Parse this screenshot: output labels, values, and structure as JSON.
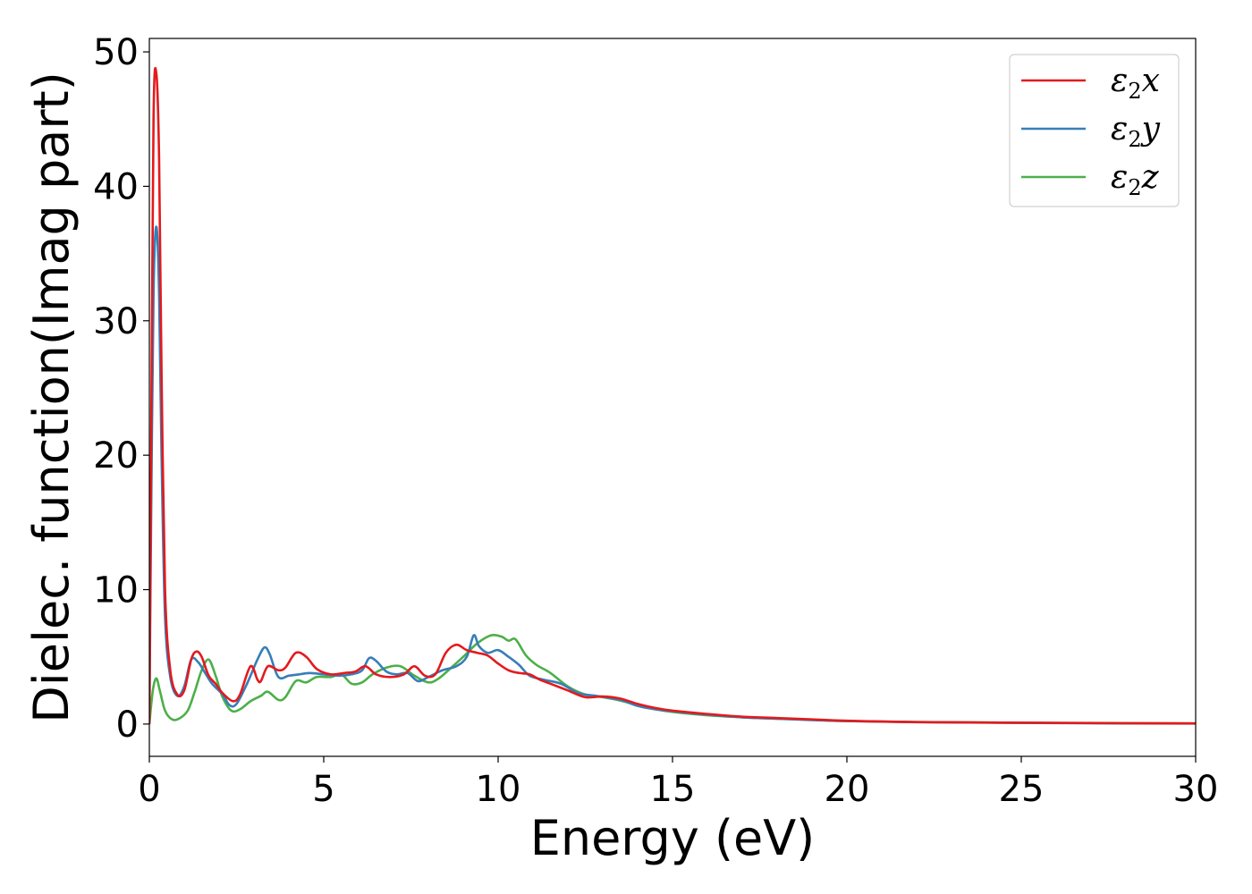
{
  "chart_data": {
    "type": "line",
    "xlabel": "Energy (eV)",
    "ylabel": "Dielec. function(Imag part)",
    "xlim": [
      0,
      30
    ],
    "ylim": [
      -2.4,
      51
    ],
    "xticks": [
      0,
      5,
      10,
      15,
      20,
      25,
      30
    ],
    "yticks": [
      0,
      10,
      20,
      30,
      40,
      50
    ],
    "grid": false,
    "legend_position": "top-right",
    "series": [
      {
        "name": "ε₂x",
        "legend_base": "ε",
        "legend_sub": "2",
        "legend_tail": "x",
        "color": "#e41a1c",
        "points": [
          [
            0,
            0
          ],
          [
            0.05,
            20
          ],
          [
            0.12,
            45
          ],
          [
            0.2,
            48.4
          ],
          [
            0.28,
            42
          ],
          [
            0.35,
            26
          ],
          [
            0.45,
            10
          ],
          [
            0.6,
            4
          ],
          [
            0.8,
            2.2
          ],
          [
            1.0,
            2.5
          ],
          [
            1.2,
            4.8
          ],
          [
            1.35,
            5.4
          ],
          [
            1.5,
            5
          ],
          [
            1.7,
            3.6
          ],
          [
            1.9,
            3
          ],
          [
            2.1,
            2.3
          ],
          [
            2.4,
            1.7
          ],
          [
            2.6,
            2.2
          ],
          [
            2.9,
            4.3
          ],
          [
            3.1,
            3.3
          ],
          [
            3.2,
            3.2
          ],
          [
            3.4,
            4.3
          ],
          [
            3.7,
            4
          ],
          [
            3.9,
            4.2
          ],
          [
            4.2,
            5.3
          ],
          [
            4.5,
            5
          ],
          [
            4.8,
            4.1
          ],
          [
            5.2,
            3.7
          ],
          [
            5.6,
            3.8
          ],
          [
            5.9,
            3.9
          ],
          [
            6.2,
            4.3
          ],
          [
            6.5,
            3.7
          ],
          [
            6.9,
            3.5
          ],
          [
            7.3,
            3.7
          ],
          [
            7.6,
            4.3
          ],
          [
            7.9,
            3.6
          ],
          [
            8.2,
            3.7
          ],
          [
            8.5,
            5.3
          ],
          [
            8.8,
            5.9
          ],
          [
            9.1,
            5.5
          ],
          [
            9.4,
            5.3
          ],
          [
            9.7,
            5.1
          ],
          [
            10.0,
            4.5
          ],
          [
            10.3,
            4.0
          ],
          [
            10.6,
            3.8
          ],
          [
            10.9,
            3.7
          ],
          [
            11.2,
            3.3
          ],
          [
            11.6,
            2.9
          ],
          [
            12.0,
            2.5
          ],
          [
            12.5,
            2.0
          ],
          [
            13.0,
            2.05
          ],
          [
            13.5,
            1.9
          ],
          [
            14.0,
            1.5
          ],
          [
            14.5,
            1.2
          ],
          [
            15.0,
            1.0
          ],
          [
            16.0,
            0.75
          ],
          [
            17.0,
            0.55
          ],
          [
            18.0,
            0.45
          ],
          [
            19.0,
            0.35
          ],
          [
            20.0,
            0.25
          ],
          [
            22.0,
            0.15
          ],
          [
            25.0,
            0.1
          ],
          [
            28.0,
            0.06
          ],
          [
            30.0,
            0.05
          ]
        ]
      },
      {
        "name": "ε₂y",
        "legend_base": "ε",
        "legend_sub": "2",
        "legend_tail": "y",
        "color": "#377eb8",
        "points": [
          [
            0,
            0
          ],
          [
            0.05,
            15
          ],
          [
            0.12,
            32
          ],
          [
            0.2,
            37
          ],
          [
            0.28,
            32
          ],
          [
            0.35,
            20
          ],
          [
            0.45,
            8
          ],
          [
            0.6,
            3.5
          ],
          [
            0.8,
            2.1
          ],
          [
            1.0,
            2.8
          ],
          [
            1.2,
            4.8
          ],
          [
            1.4,
            4.6
          ],
          [
            1.6,
            3.8
          ],
          [
            1.8,
            3.0
          ],
          [
            2.1,
            2.2
          ],
          [
            2.3,
            1.4
          ],
          [
            2.5,
            1.5
          ],
          [
            2.8,
            3.0
          ],
          [
            3.1,
            4.8
          ],
          [
            3.3,
            5.7
          ],
          [
            3.45,
            5.2
          ],
          [
            3.7,
            3.5
          ],
          [
            4.0,
            3.6
          ],
          [
            4.3,
            3.7
          ],
          [
            4.6,
            3.8
          ],
          [
            5.0,
            3.7
          ],
          [
            5.4,
            3.6
          ],
          [
            5.8,
            3.7
          ],
          [
            6.1,
            4.0
          ],
          [
            6.3,
            4.9
          ],
          [
            6.5,
            4.7
          ],
          [
            6.8,
            3.9
          ],
          [
            7.1,
            3.7
          ],
          [
            7.4,
            3.8
          ],
          [
            7.7,
            3.2
          ],
          [
            8.0,
            3.5
          ],
          [
            8.4,
            4.0
          ],
          [
            8.8,
            4.3
          ],
          [
            9.1,
            5.0
          ],
          [
            9.3,
            6.6
          ],
          [
            9.45,
            5.8
          ],
          [
            9.7,
            5.3
          ],
          [
            10.0,
            5.5
          ],
          [
            10.3,
            5.0
          ],
          [
            10.6,
            4.4
          ],
          [
            10.9,
            3.6
          ],
          [
            11.3,
            3.3
          ],
          [
            11.8,
            3.0
          ],
          [
            12.3,
            2.3
          ],
          [
            12.8,
            2.1
          ],
          [
            13.5,
            1.8
          ],
          [
            14.0,
            1.35
          ],
          [
            14.5,
            1.1
          ],
          [
            15.0,
            0.95
          ],
          [
            16.0,
            0.7
          ],
          [
            17.0,
            0.5
          ],
          [
            18.0,
            0.4
          ],
          [
            19.0,
            0.3
          ],
          [
            20.0,
            0.22
          ],
          [
            22.0,
            0.14
          ],
          [
            25.0,
            0.09
          ],
          [
            28.0,
            0.05
          ],
          [
            30.0,
            0.04
          ]
        ]
      },
      {
        "name": "ε₂z",
        "legend_base": "ε",
        "legend_sub": "2",
        "legend_tail": "z",
        "color": "#4daf4a",
        "points": [
          [
            0,
            0
          ],
          [
            0.1,
            2.5
          ],
          [
            0.2,
            3.4
          ],
          [
            0.3,
            2.5
          ],
          [
            0.45,
            1.0
          ],
          [
            0.65,
            0.35
          ],
          [
            0.85,
            0.4
          ],
          [
            1.1,
            1.0
          ],
          [
            1.3,
            2.4
          ],
          [
            1.5,
            4.0
          ],
          [
            1.7,
            4.8
          ],
          [
            1.9,
            3.6
          ],
          [
            2.1,
            2.0
          ],
          [
            2.35,
            1.0
          ],
          [
            2.6,
            1.1
          ],
          [
            2.9,
            1.7
          ],
          [
            3.2,
            2.1
          ],
          [
            3.4,
            2.4
          ],
          [
            3.7,
            1.8
          ],
          [
            3.9,
            2.0
          ],
          [
            4.2,
            3.2
          ],
          [
            4.5,
            3.1
          ],
          [
            4.8,
            3.5
          ],
          [
            5.2,
            3.5
          ],
          [
            5.5,
            3.7
          ],
          [
            5.8,
            3.0
          ],
          [
            6.1,
            3.1
          ],
          [
            6.4,
            3.7
          ],
          [
            6.8,
            4.2
          ],
          [
            7.2,
            4.3
          ],
          [
            7.6,
            3.6
          ],
          [
            8.0,
            3.1
          ],
          [
            8.3,
            3.4
          ],
          [
            8.7,
            4.3
          ],
          [
            9.0,
            5.0
          ],
          [
            9.4,
            6.0
          ],
          [
            9.8,
            6.6
          ],
          [
            10.1,
            6.5
          ],
          [
            10.3,
            6.2
          ],
          [
            10.5,
            6.3
          ],
          [
            10.8,
            5.1
          ],
          [
            11.1,
            4.4
          ],
          [
            11.5,
            3.8
          ],
          [
            12.0,
            2.8
          ],
          [
            12.5,
            2.2
          ],
          [
            13.0,
            2.0
          ],
          [
            13.5,
            1.75
          ],
          [
            14.0,
            1.4
          ],
          [
            14.5,
            1.1
          ],
          [
            15.0,
            0.9
          ],
          [
            16.0,
            0.65
          ],
          [
            17.0,
            0.5
          ],
          [
            18.0,
            0.4
          ],
          [
            19.0,
            0.32
          ],
          [
            20.0,
            0.22
          ],
          [
            22.0,
            0.15
          ],
          [
            25.0,
            0.1
          ],
          [
            28.0,
            0.07
          ],
          [
            30.0,
            0.05
          ]
        ]
      }
    ]
  }
}
